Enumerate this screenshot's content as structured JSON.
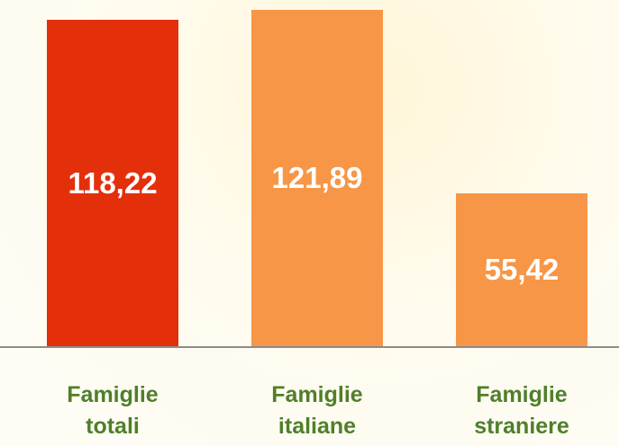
{
  "chart_data": {
    "type": "bar",
    "categories": [
      "Famiglie totali",
      "Famiglie italiane",
      "Famiglie straniere"
    ],
    "values": [
      118.22,
      121.89,
      55.42
    ],
    "value_labels": [
      "118,22",
      "121,89",
      "55,42"
    ],
    "colors": [
      "#e3300b",
      "#f79646",
      "#f79646"
    ]
  }
}
